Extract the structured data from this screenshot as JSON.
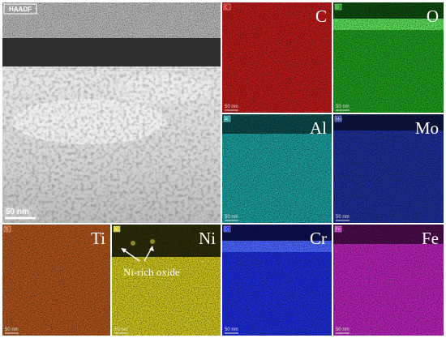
{
  "haadf": {
    "label": "HAADF",
    "scale_bar": "50 nm"
  },
  "maps": [
    {
      "tag": "C",
      "element": "C",
      "scale_bar": "50 nm"
    },
    {
      "tag": "O",
      "element": "O",
      "scale_bar": "50 nm"
    },
    {
      "tag": "Al",
      "element": "Al",
      "scale_bar": "50 nm"
    },
    {
      "tag": "Mo",
      "element": "Mo",
      "scale_bar": "50 nm"
    },
    {
      "tag": "Ti",
      "element": "Ti",
      "scale_bar": "50 nm"
    },
    {
      "tag": "Ni",
      "element": "Ni",
      "scale_bar": "50 nm"
    },
    {
      "tag": "Cr",
      "element": "Cr",
      "scale_bar": "50 nm"
    },
    {
      "tag": "Fe",
      "element": "Fe",
      "scale_bar": "50 nm"
    }
  ],
  "annotation": "Ni-rich oxide"
}
